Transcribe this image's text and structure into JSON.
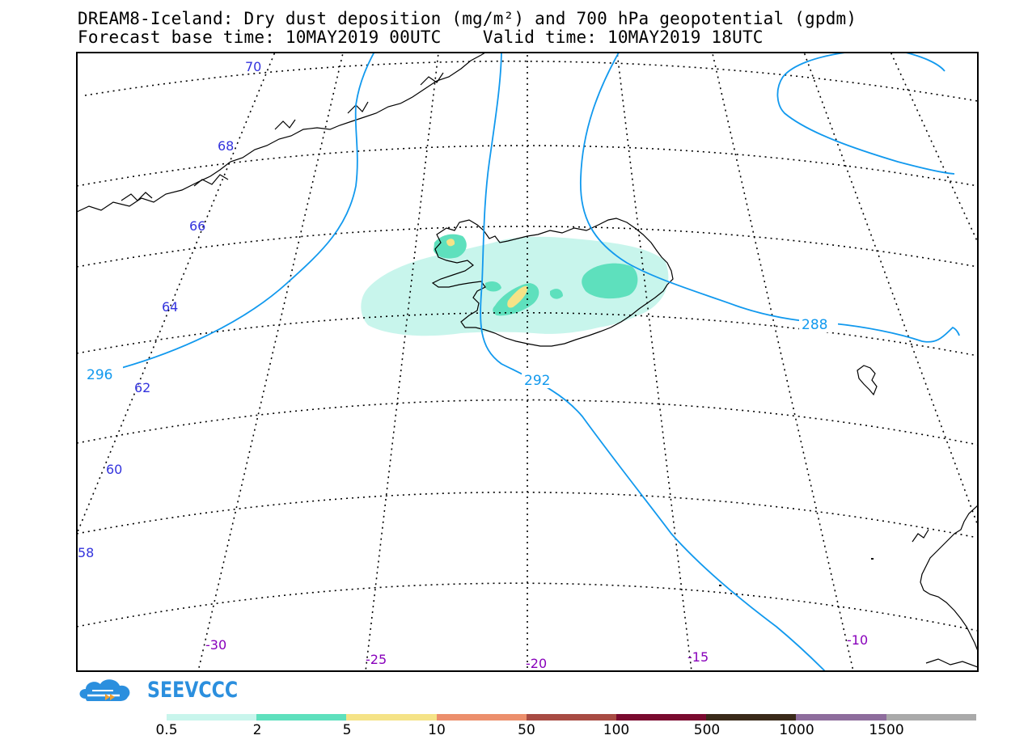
{
  "header": {
    "title_line1": "DREAM8-Iceland: Dry dust deposition (mg/m²) and 700 hPa geopotential (gpdm)",
    "title_line2": "Forecast base time: 10MAY2019 00UTC    Valid time: 10MAY2019 18UTC"
  },
  "map": {
    "latitude_labels": [
      "70",
      "68",
      "66",
      "64",
      "62",
      "60",
      "58"
    ],
    "longitude_labels": [
      "-30",
      "-25",
      "-20",
      "-15",
      "-10"
    ],
    "contour_labels": [
      "296",
      "292",
      "288"
    ],
    "colors": {
      "contour": "#1199ee",
      "coast": "#000000",
      "grid": "#000000"
    }
  },
  "logo": {
    "text": "SEEVCCC",
    "icon": "cloud-logo-icon",
    "color": "#2b8fde"
  },
  "colorbar": {
    "labels": [
      "0.5",
      "2",
      "5",
      "10",
      "50",
      "100",
      "500",
      "1000",
      "1500"
    ],
    "colors": [
      "#c8f5ec",
      "#5ee0bd",
      "#f5e387",
      "#ec8f6c",
      "#a84b43",
      "#7a0a2f",
      "#3a2a1a",
      "#8e6d9d",
      "#aaaaaa"
    ]
  }
}
